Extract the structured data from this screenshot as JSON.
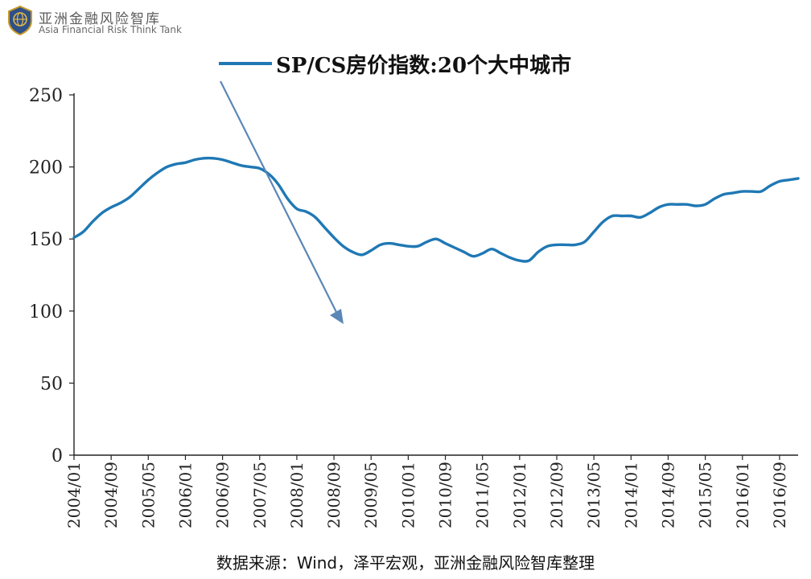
{
  "brand": {
    "name_cn": "亚洲金融风险智库",
    "name_en": "Asia Financial Risk Think Tank",
    "logo_icon": "globe-shield-logo-icon"
  },
  "source_note": "数据来源：Wind，泽平宏观，亚洲金融风险智库整理",
  "colors": {
    "series": "#1f78b4",
    "arrow": "#5b87b7",
    "axis": "#222222"
  },
  "chart_data": {
    "type": "line",
    "title": "",
    "xlabel": "",
    "ylabel": "",
    "ylim": [
      0,
      250
    ],
    "yticks": [
      "0",
      "50",
      "100",
      "150",
      "200",
      "250"
    ],
    "xticks": [
      "2004/01",
      "2004/09",
      "2005/05",
      "2006/01",
      "2006/09",
      "2007/05",
      "2008/01",
      "2008/09",
      "2009/05",
      "2010/01",
      "2010/09",
      "2011/05",
      "2012/01",
      "2012/09",
      "2013/05",
      "2014/01",
      "2014/09",
      "2015/05",
      "2016/01",
      "2016/09"
    ],
    "legend": {
      "position": "top",
      "entries": [
        "SP/CS房价指数:20个大中城市"
      ]
    },
    "annotation": "downward-trend-arrow",
    "series": [
      {
        "name": "SP/CS房价指数:20个大中城市",
        "x": [
          "2004/01",
          "2004/03",
          "2004/05",
          "2004/07",
          "2004/09",
          "2004/11",
          "2005/01",
          "2005/03",
          "2005/05",
          "2005/07",
          "2005/09",
          "2005/11",
          "2006/01",
          "2006/03",
          "2006/05",
          "2006/07",
          "2006/09",
          "2006/11",
          "2007/01",
          "2007/03",
          "2007/05",
          "2007/07",
          "2007/09",
          "2007/11",
          "2008/01",
          "2008/03",
          "2008/05",
          "2008/07",
          "2008/09",
          "2008/11",
          "2009/01",
          "2009/03",
          "2009/05",
          "2009/07",
          "2009/09",
          "2009/11",
          "2010/01",
          "2010/03",
          "2010/05",
          "2010/07",
          "2010/09",
          "2010/11",
          "2011/01",
          "2011/03",
          "2011/05",
          "2011/07",
          "2011/09",
          "2011/11",
          "2012/01",
          "2012/03",
          "2012/05",
          "2012/07",
          "2012/09",
          "2012/11",
          "2013/01",
          "2013/03",
          "2013/05",
          "2013/07",
          "2013/09",
          "2013/11",
          "2014/01",
          "2014/03",
          "2014/05",
          "2014/07",
          "2014/09",
          "2014/11",
          "2015/01",
          "2015/03",
          "2015/05",
          "2015/07",
          "2015/09",
          "2015/11",
          "2016/01",
          "2016/03",
          "2016/05",
          "2016/07",
          "2016/09",
          "2016/11",
          "2017/01"
        ],
        "values": [
          151,
          155,
          162,
          168,
          172,
          175,
          179,
          185,
          191,
          196,
          200,
          202,
          203,
          205,
          206,
          206,
          205,
          203,
          201,
          200,
          199,
          195,
          188,
          178,
          171,
          169,
          165,
          158,
          151,
          145,
          141,
          139,
          142,
          146,
          147,
          146,
          145,
          145,
          148,
          150,
          147,
          144,
          141,
          138,
          140,
          143,
          140,
          137,
          135,
          135,
          141,
          145,
          146,
          146,
          146,
          148,
          155,
          162,
          166,
          166,
          166,
          165,
          168,
          172,
          174,
          174,
          174,
          173,
          174,
          178,
          181,
          182,
          183,
          183,
          183,
          187,
          190,
          191,
          192
        ]
      }
    ]
  }
}
